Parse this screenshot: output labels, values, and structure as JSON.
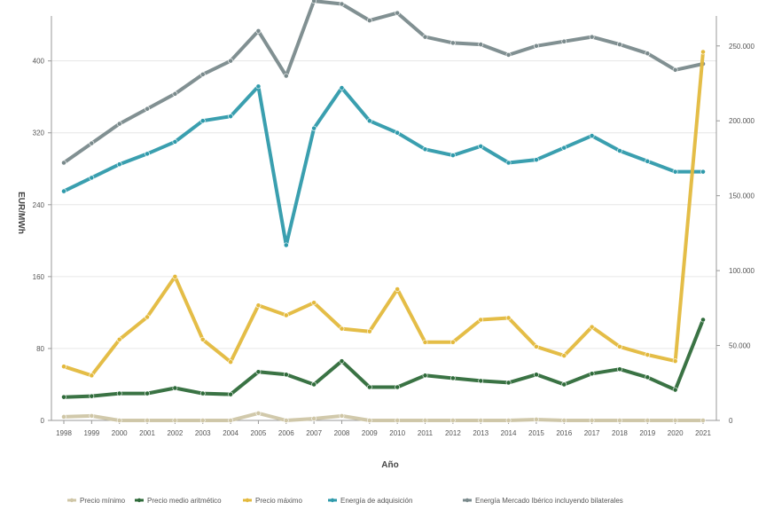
{
  "chart_data": {
    "type": "line",
    "xlabel": "Año",
    "ylabel_left": "EUR/MWh",
    "ylim_left": [
      0,
      450
    ],
    "ylim_right": [
      0,
      270000
    ],
    "left_ticks": [
      "0",
      "80",
      "160",
      "240",
      "320",
      "400"
    ],
    "right_ticks": [
      "0",
      "50.000",
      "100.000",
      "150.000",
      "200.000",
      "250.000"
    ],
    "categories": [
      "1998",
      "1999",
      "2000",
      "2001",
      "2002",
      "2003",
      "2004",
      "2005",
      "2006",
      "2007",
      "2008",
      "2009",
      "2010",
      "2011",
      "2012",
      "2013",
      "2014",
      "2015",
      "2016",
      "2017",
      "2018",
      "2019",
      "2020",
      "2021"
    ],
    "grid": true,
    "legend_position": "bottom",
    "series": [
      {
        "name": "Precio mínimo",
        "axis": "left",
        "color": "#cfc6a6",
        "values": [
          4,
          5,
          0,
          0,
          0,
          0,
          0,
          8,
          0,
          2,
          5,
          0,
          0,
          0,
          0,
          0,
          0,
          1,
          0,
          0,
          0,
          0,
          0,
          0
        ]
      },
      {
        "name": "Precio medio aritmético",
        "axis": "left",
        "color": "#2f6b3a",
        "values": [
          26,
          27,
          30,
          30,
          36,
          30,
          29,
          54,
          51,
          40,
          66,
          37,
          37,
          50,
          47,
          44,
          42,
          51,
          40,
          52,
          57,
          48,
          34,
          112
        ]
      },
      {
        "name": "Precio máximo",
        "axis": "left",
        "color": "#e3b93d",
        "values": [
          60,
          50,
          90,
          115,
          160,
          90,
          65,
          128,
          117,
          131,
          102,
          99,
          146,
          87,
          87,
          112,
          114,
          82,
          72,
          104,
          82,
          73,
          66,
          410
        ]
      },
      {
        "name": "Energía de adquisición",
        "axis": "right",
        "color": "#2f9aab",
        "values": [
          153000,
          162000,
          171000,
          178000,
          186000,
          200000,
          203000,
          223000,
          117000,
          195000,
          222000,
          200000,
          192000,
          181000,
          177000,
          183000,
          172000,
          174000,
          182000,
          190000,
          180000,
          173000,
          166000,
          166000
        ]
      },
      {
        "name": "Energía Mercado Ibérico incluyendo bilaterales",
        "axis": "right",
        "color": "#7a8a8c",
        "values": [
          172000,
          185000,
          198000,
          208000,
          218000,
          231000,
          240000,
          260000,
          230000,
          280000,
          278000,
          267000,
          272000,
          256000,
          252000,
          251000,
          244000,
          250000,
          253000,
          256000,
          251000,
          245000,
          234000,
          238000
        ]
      }
    ]
  }
}
